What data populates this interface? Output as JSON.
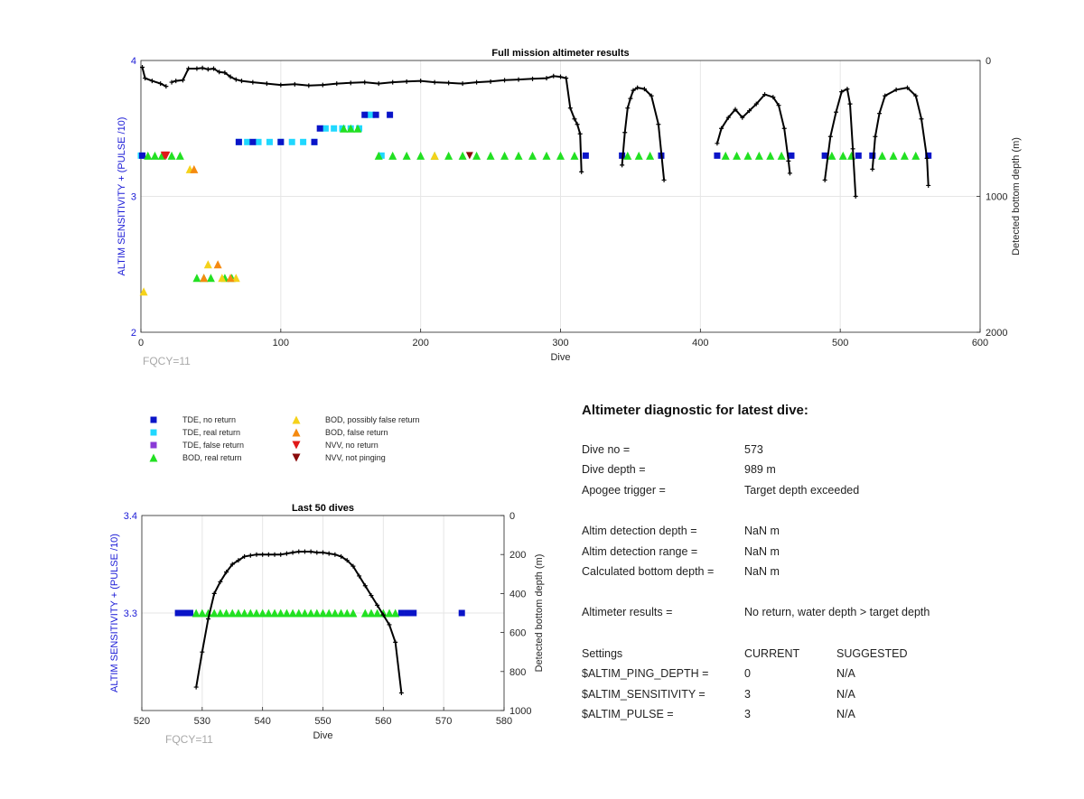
{
  "chart_data": [
    {
      "type": "scatter",
      "title": "Full mission altimeter results",
      "xlabel": "Dive",
      "ylabel": "ALTIM SENSITIVITY + (PULSE /10)",
      "y2label": "Detected bottom depth (m)",
      "xlim": [
        0,
        600
      ],
      "ylim": [
        2,
        4
      ],
      "y2lim": [
        2000,
        0
      ],
      "xticks": [
        "0",
        "100",
        "200",
        "300",
        "400",
        "500",
        "600"
      ],
      "yticks": [
        "2",
        "3",
        "4"
      ],
      "y2ticks": [
        "0",
        "1000",
        "2000"
      ],
      "grid": true,
      "annotation": "FQCY=11",
      "tde_no_return": [
        [
          1,
          3.3
        ],
        [
          70,
          3.4
        ],
        [
          80,
          3.4
        ],
        [
          100,
          3.4
        ],
        [
          124,
          3.4
        ],
        [
          128,
          3.5
        ],
        [
          160,
          3.6
        ],
        [
          168,
          3.6
        ],
        [
          178,
          3.6
        ],
        [
          318,
          3.3
        ],
        [
          344,
          3.3
        ],
        [
          372,
          3.3
        ],
        [
          412,
          3.3
        ],
        [
          465,
          3.3
        ],
        [
          489,
          3.3
        ],
        [
          513,
          3.3
        ],
        [
          523,
          3.3
        ],
        [
          563,
          3.3
        ]
      ],
      "tde_real_return": [
        [
          0,
          3.3
        ],
        [
          70,
          3.4
        ],
        [
          76,
          3.4
        ],
        [
          84,
          3.4
        ],
        [
          92,
          3.4
        ],
        [
          100,
          3.4
        ],
        [
          108,
          3.4
        ],
        [
          116,
          3.4
        ],
        [
          124,
          3.4
        ],
        [
          132,
          3.5
        ],
        [
          138,
          3.5
        ],
        [
          144,
          3.5
        ],
        [
          150,
          3.5
        ],
        [
          156,
          3.5
        ],
        [
          162,
          3.6
        ],
        [
          165,
          3.6
        ],
        [
          172,
          3.3
        ]
      ],
      "bod_real_return": [
        [
          5,
          3.3
        ],
        [
          10,
          3.3
        ],
        [
          15,
          3.3
        ],
        [
          22,
          3.3
        ],
        [
          28,
          3.3
        ],
        [
          40,
          2.4
        ],
        [
          45,
          2.4
        ],
        [
          50,
          2.4
        ],
        [
          60,
          2.4
        ],
        [
          65,
          2.4
        ],
        [
          145,
          3.5
        ],
        [
          150,
          3.5
        ],
        [
          155,
          3.5
        ],
        [
          170,
          3.3
        ],
        [
          180,
          3.3
        ],
        [
          190,
          3.3
        ],
        [
          200,
          3.3
        ],
        [
          210,
          3.3
        ],
        [
          220,
          3.3
        ],
        [
          230,
          3.3
        ],
        [
          240,
          3.3
        ],
        [
          250,
          3.3
        ],
        [
          260,
          3.3
        ],
        [
          270,
          3.3
        ],
        [
          280,
          3.3
        ],
        [
          290,
          3.3
        ],
        [
          300,
          3.3
        ],
        [
          310,
          3.3
        ],
        [
          348,
          3.3
        ],
        [
          356,
          3.3
        ],
        [
          364,
          3.3
        ],
        [
          418,
          3.3
        ],
        [
          426,
          3.3
        ],
        [
          434,
          3.3
        ],
        [
          442,
          3.3
        ],
        [
          450,
          3.3
        ],
        [
          458,
          3.3
        ],
        [
          494,
          3.3
        ],
        [
          502,
          3.3
        ],
        [
          508,
          3.3
        ],
        [
          530,
          3.3
        ],
        [
          538,
          3.3
        ],
        [
          546,
          3.3
        ],
        [
          554,
          3.3
        ]
      ],
      "bod_possibly_false": [
        [
          2,
          2.3
        ],
        [
          35,
          3.2
        ],
        [
          48,
          2.5
        ],
        [
          58,
          2.4
        ],
        [
          68,
          2.4
        ],
        [
          210,
          3.3
        ]
      ],
      "bod_false": [
        [
          38,
          3.2
        ],
        [
          55,
          2.5
        ],
        [
          45,
          2.4
        ],
        [
          64,
          2.4
        ]
      ],
      "nvv_no_return": [
        [
          17,
          3.3
        ],
        [
          18,
          3.3
        ]
      ],
      "nvv_not_pinging": [
        [
          235,
          3.3
        ]
      ],
      "bottom_depth": [
        [
          [
            1,
            50
          ],
          [
            3,
            130
          ],
          [
            8,
            150
          ],
          [
            14,
            170
          ],
          [
            18,
            190
          ]
        ],
        [
          [
            22,
            160
          ],
          [
            25,
            150
          ],
          [
            30,
            145
          ],
          [
            34,
            60
          ],
          [
            40,
            60
          ],
          [
            44,
            55
          ],
          [
            48,
            65
          ],
          [
            52,
            60
          ],
          [
            56,
            85
          ],
          [
            60,
            90
          ],
          [
            64,
            120
          ],
          [
            68,
            140
          ],
          [
            72,
            150
          ],
          [
            80,
            160
          ],
          [
            90,
            170
          ],
          [
            100,
            180
          ],
          [
            110,
            175
          ],
          [
            120,
            185
          ],
          [
            130,
            180
          ],
          [
            140,
            170
          ],
          [
            150,
            165
          ],
          [
            160,
            160
          ],
          [
            170,
            170
          ],
          [
            180,
            160
          ],
          [
            190,
            155
          ],
          [
            200,
            150
          ],
          [
            210,
            160
          ],
          [
            220,
            165
          ],
          [
            230,
            170
          ],
          [
            240,
            160
          ],
          [
            250,
            155
          ],
          [
            260,
            145
          ],
          [
            270,
            140
          ],
          [
            280,
            135
          ],
          [
            290,
            130
          ],
          [
            295,
            115
          ],
          [
            300,
            120
          ],
          [
            304,
            130
          ],
          [
            307,
            350
          ],
          [
            310,
            430
          ],
          [
            312,
            470
          ],
          [
            314,
            540
          ],
          [
            315,
            820
          ]
        ],
        [
          [
            344,
            770
          ],
          [
            346,
            530
          ],
          [
            348,
            350
          ],
          [
            350,
            280
          ],
          [
            352,
            220
          ],
          [
            355,
            200
          ],
          [
            360,
            210
          ],
          [
            365,
            260
          ],
          [
            370,
            470
          ],
          [
            374,
            880
          ]
        ],
        [
          [
            412,
            610
          ],
          [
            415,
            500
          ],
          [
            420,
            420
          ],
          [
            425,
            360
          ],
          [
            430,
            420
          ],
          [
            435,
            370
          ],
          [
            440,
            320
          ],
          [
            446,
            250
          ],
          [
            452,
            270
          ],
          [
            456,
            330
          ],
          [
            460,
            500
          ],
          [
            463,
            740
          ],
          [
            464,
            830
          ]
        ],
        [
          [
            489,
            880
          ],
          [
            493,
            560
          ],
          [
            497,
            380
          ],
          [
            501,
            230
          ],
          [
            505,
            210
          ],
          [
            507,
            320
          ],
          [
            509,
            650
          ],
          [
            511,
            1000
          ]
        ],
        [
          [
            523,
            800
          ],
          [
            525,
            560
          ],
          [
            528,
            390
          ],
          [
            532,
            260
          ],
          [
            540,
            215
          ],
          [
            548,
            200
          ],
          [
            554,
            260
          ],
          [
            558,
            430
          ],
          [
            562,
            720
          ],
          [
            563,
            920
          ]
        ]
      ]
    },
    {
      "type": "scatter",
      "title": "Last 50 dives",
      "xlabel": "Dive",
      "ylabel": "ALTIM SENSITIVITY + (PULSE /10)",
      "y2label": "Detected bottom depth (m)",
      "xlim": [
        520,
        580
      ],
      "ylim": [
        3.2,
        3.4
      ],
      "y2lim": [
        1000,
        0
      ],
      "xticks": [
        "520",
        "530",
        "540",
        "550",
        "560",
        "570",
        "580"
      ],
      "yticks": [
        "3.3",
        "3.4"
      ],
      "y2ticks": [
        "0",
        "200",
        "400",
        "600",
        "800",
        "1000"
      ],
      "grid": true,
      "annotation": "FQCY=11",
      "tde_no_return": [
        526,
        527,
        528,
        563,
        564,
        565,
        573
      ],
      "bod_real_return": [
        529,
        530,
        531,
        532,
        533,
        534,
        535,
        536,
        537,
        538,
        539,
        540,
        541,
        542,
        543,
        544,
        545,
        546,
        547,
        548,
        549,
        550,
        551,
        552,
        553,
        554,
        555,
        557,
        558,
        559,
        560,
        561,
        562
      ],
      "bottom_depth": [
        [
          529,
          880
        ],
        [
          530,
          700
        ],
        [
          531,
          530
        ],
        [
          532,
          400
        ],
        [
          533,
          340
        ],
        [
          534,
          290
        ],
        [
          535,
          250
        ],
        [
          536,
          230
        ],
        [
          537,
          210
        ],
        [
          538,
          205
        ],
        [
          539,
          200
        ],
        [
          540,
          200
        ],
        [
          541,
          200
        ],
        [
          542,
          200
        ],
        [
          543,
          200
        ],
        [
          544,
          195
        ],
        [
          545,
          190
        ],
        [
          546,
          185
        ],
        [
          547,
          185
        ],
        [
          548,
          185
        ],
        [
          549,
          190
        ],
        [
          550,
          190
        ],
        [
          551,
          195
        ],
        [
          552,
          200
        ],
        [
          553,
          210
        ],
        [
          554,
          230
        ],
        [
          555,
          260
        ],
        [
          556,
          310
        ],
        [
          557,
          360
        ],
        [
          558,
          410
        ],
        [
          559,
          460
        ],
        [
          560,
          510
        ],
        [
          561,
          560
        ],
        [
          562,
          650
        ],
        [
          563,
          910
        ]
      ]
    }
  ],
  "legend": {
    "tde_no_return": "TDE, no return",
    "tde_real_return": "TDE, real return",
    "tde_false_return": "TDE, false return",
    "bod_real_return": "BOD, real return",
    "bod_possibly_false": "BOD, possibly false return",
    "bod_false": "BOD, false return",
    "nvv_no_return": "NVV, no return",
    "nvv_not_pinging": "NVV, not pinging"
  },
  "colors": {
    "tde_no_return": "#0a14c8",
    "tde_real_return": "#20d8ff",
    "tde_false_return": "#8a3ad6",
    "bod_real_return": "#22e022",
    "bod_possibly_false": "#f5d21a",
    "bod_false": "#f58a10",
    "nvv_no_return": "#e01818",
    "nvv_not_pinging": "#8a0a0a",
    "depth_line": "#000000",
    "axis_blue": "#1a1ad6"
  },
  "diagnostic": {
    "heading": "Altimeter diagnostic for latest dive:",
    "dive_no_label": "Dive no =",
    "dive_no": "573",
    "dive_depth_label": "Dive depth =",
    "dive_depth": "989 m",
    "apogee_label": "Apogee trigger =",
    "apogee": "Target depth exceeded",
    "altim_det_depth_label": "Altim detection depth =",
    "altim_det_depth": "NaN m",
    "altim_det_range_label": "Altim detection range =",
    "altim_det_range": "NaN m",
    "calc_bottom_label": "Calculated bottom depth =",
    "calc_bottom": "NaN m",
    "results_label": "Altimeter results =",
    "results": "No return, water depth > target depth",
    "settings_label": "Settings",
    "current_label": "CURRENT",
    "suggested_label": "SUGGESTED",
    "ping_depth_label": "$ALTIM_PING_DEPTH =",
    "ping_depth_current": "0",
    "ping_depth_suggested": "N/A",
    "sensitivity_label": "$ALTIM_SENSITIVITY =",
    "sensitivity_current": "3",
    "sensitivity_suggested": "N/A",
    "pulse_label": "$ALTIM_PULSE =",
    "pulse_current": "3",
    "pulse_suggested": "N/A"
  }
}
